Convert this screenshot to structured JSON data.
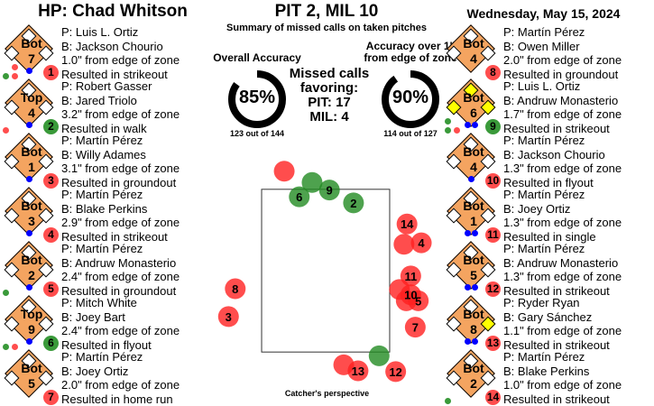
{
  "header": {
    "umpire": "HP: Chad Whitson",
    "score": "PIT 2, MIL 10",
    "subtitle": "Summary of missed calls on taken pitches",
    "date": "Wednesday, May 15, 2024"
  },
  "colors": {
    "red": "#ff4d4d",
    "green": "#3a9a3a",
    "base": "#f4a460",
    "occupied": "#ffff00",
    "out": "#0000ff"
  },
  "stats": {
    "overall": {
      "label": "Overall Accuracy",
      "pct_text": "85%",
      "pct": 0.85,
      "detail": "123 out of 144"
    },
    "over1": {
      "label1": "Accuracy over 1\"",
      "label2": "from edge of zone",
      "pct_text": "90%",
      "pct": 0.9,
      "detail": "114 out of 127"
    },
    "missed": {
      "l1": "Missed calls",
      "l2": "favoring:",
      "l3": "PIT: 17",
      "l4": "MIL: 4"
    }
  },
  "cards": [
    {
      "num": "1",
      "color": "red",
      "inning": [
        "Bot",
        "7"
      ],
      "bases": [
        0,
        0,
        0
      ],
      "outs": 1,
      "count": [
        [
          "",
          "red"
        ],
        [
          "green",
          "red"
        ]
      ],
      "lines": [
        "P: Luis L. Ortiz",
        "B: Jackson Chourio",
        "1.0\" from edge of zone",
        "Resulted in strikeout"
      ]
    },
    {
      "num": "2",
      "color": "green",
      "inning": [
        "Top",
        "4"
      ],
      "bases": [
        0,
        0,
        0
      ],
      "outs": 1,
      "count": [
        [],
        [
          "red"
        ]
      ],
      "lines": [
        "P: Robert Gasser",
        "B: Jared Triolo",
        "3.2\" from edge of zone",
        "Resulted in walk"
      ]
    },
    {
      "num": "3",
      "color": "red",
      "inning": [
        "Bot",
        "1"
      ],
      "bases": [
        0,
        0,
        0
      ],
      "outs": 1,
      "count": [
        [],
        []
      ],
      "lines": [
        "P: Martín Pérez",
        "B: Willy Adames",
        "3.1\" from edge of zone",
        "Resulted in groundout"
      ]
    },
    {
      "num": "4",
      "color": "red",
      "inning": [
        "Bot",
        "3"
      ],
      "bases": [
        0,
        0,
        0
      ],
      "outs": 1,
      "count": [
        [],
        []
      ],
      "lines": [
        "P: Martín Pérez",
        "B: Blake Perkins",
        "2.9\" from edge of zone",
        "Resulted in strikeout"
      ]
    },
    {
      "num": "5",
      "color": "red",
      "inning": [
        "Bot",
        "2"
      ],
      "bases": [
        0,
        0,
        0
      ],
      "outs": 1,
      "count": [
        [],
        [
          "green"
        ]
      ],
      "lines": [
        "P: Martín Pérez",
        "B: Andruw Monasterio",
        "2.4\" from edge of zone",
        "Resulted in groundout"
      ]
    },
    {
      "num": "6",
      "color": "green",
      "inning": [
        "Top",
        "9"
      ],
      "bases": [
        0,
        0,
        0
      ],
      "outs": 1,
      "count": [
        [],
        [
          "green",
          "red"
        ]
      ],
      "lines": [
        "P: Mitch White",
        "B: Joey Bart",
        "2.4\" from edge of zone",
        "Resulted in flyout"
      ]
    },
    {
      "num": "7",
      "color": "red",
      "inning": [
        "Bot",
        "5"
      ],
      "bases": [
        0,
        0,
        0
      ],
      "outs": 0,
      "count": [
        [],
        []
      ],
      "lines": [
        "P: Martín Pérez",
        "B: Joey Ortiz",
        "2.0\" from edge of zone",
        "Resulted in home run"
      ]
    },
    {
      "num": "8",
      "color": "red",
      "inning": [
        "Bot",
        "4"
      ],
      "bases": [
        0,
        0,
        0
      ],
      "outs": 0,
      "count": [
        [],
        []
      ],
      "lines": [
        "P: Martín Pérez",
        "B: Owen Miller",
        "2.0\" from edge of zone",
        "Resulted in groundout"
      ]
    },
    {
      "num": "9",
      "color": "green",
      "inning": [
        "Bot",
        "6"
      ],
      "bases": [
        1,
        1,
        1
      ],
      "outs": 2,
      "count": [
        [
          "green"
        ],
        [
          "green",
          "red"
        ]
      ],
      "lines": [
        "P: Luis L. Ortiz",
        "B: Andruw Monasterio",
        "1.7\" from edge of zone",
        "Resulted in strikeout"
      ]
    },
    {
      "num": "10",
      "color": "red",
      "inning": [
        "Bot",
        "4"
      ],
      "bases": [
        0,
        0,
        0
      ],
      "outs": 1,
      "count": [
        [],
        []
      ],
      "lines": [
        "P: Martín Pérez",
        "B: Jackson Chourio",
        "1.3\" from edge of zone",
        "Resulted in flyout"
      ]
    },
    {
      "num": "11",
      "color": "red",
      "inning": [
        "Bot",
        "1"
      ],
      "bases": [
        0,
        0,
        0
      ],
      "outs": 2,
      "count": [
        [],
        []
      ],
      "lines": [
        "P: Martín Pérez",
        "B: Joey Ortiz",
        "1.3\" from edge of zone",
        "Resulted in single"
      ]
    },
    {
      "num": "12",
      "color": "red",
      "inning": [
        "Bot",
        "5"
      ],
      "bases": [
        0,
        0,
        0
      ],
      "outs": 2,
      "count": [
        [],
        []
      ],
      "lines": [
        "P: Martín Pérez",
        "B: Andruw Monasterio",
        "1.3\" from edge of zone",
        "Resulted in strikeout"
      ]
    },
    {
      "num": "13",
      "color": "red",
      "inning": [
        "Bot",
        "8"
      ],
      "bases": [
        1,
        0,
        0
      ],
      "outs": 2,
      "count": [
        [],
        []
      ],
      "lines": [
        "P: Ryder Ryan",
        "B: Gary Sánchez",
        "1.1\" from edge of zone",
        "Resulted in strikeout"
      ]
    },
    {
      "num": "14",
      "color": "red",
      "inning": [
        "Bot",
        "2"
      ],
      "bases": [
        0,
        0,
        0
      ],
      "outs": 0,
      "count": [
        [],
        [
          "green"
        ]
      ],
      "lines": [
        "P: Martín Pérez",
        "B: Blake Perkins",
        "1.0\" from edge of zone",
        "Resulted in strikeout"
      ]
    }
  ],
  "plot": {
    "caption": "Catcher's perspective",
    "zone_half_width_in": 8.5,
    "zone_half_height_in": 10.8,
    "pitches": [
      {
        "label": "",
        "color": "red",
        "x_in": -5.5,
        "z_in": 13.2
      },
      {
        "label": "",
        "color": "green",
        "x_in": -1.8,
        "z_in": 11.7
      },
      {
        "label": "6",
        "color": "green",
        "x_in": -3.5,
        "z_in": 9.8
      },
      {
        "label": "9",
        "color": "green",
        "x_in": 0.5,
        "z_in": 10.7
      },
      {
        "label": "2",
        "color": "green",
        "x_in": 3.7,
        "z_in": 9.0
      },
      {
        "label": "14",
        "color": "red",
        "x_in": 10.8,
        "z_in": 6.2
      },
      {
        "label": "",
        "color": "red",
        "x_in": 10.4,
        "z_in": 3.5
      },
      {
        "label": "4",
        "color": "red",
        "x_in": 12.7,
        "z_in": 3.7
      },
      {
        "label": "11",
        "color": "red",
        "x_in": 11.3,
        "z_in": -0.7
      },
      {
        "label": "",
        "color": "red",
        "x_in": 9.8,
        "z_in": -2.5
      },
      {
        "label": "",
        "color": "red",
        "x_in": 10.7,
        "z_in": -4.0
      },
      {
        "label": "5",
        "color": "red",
        "x_in": 12.3,
        "z_in": -4.0
      },
      {
        "label": "10",
        "color": "red",
        "x_in": 11.3,
        "z_in": -3.2
      },
      {
        "label": "7",
        "color": "red",
        "x_in": 11.9,
        "z_in": -7.5
      },
      {
        "label": "8",
        "color": "red",
        "x_in": -12.0,
        "z_in": -2.4
      },
      {
        "label": "3",
        "color": "red",
        "x_in": -12.9,
        "z_in": -6.1
      },
      {
        "label": "",
        "color": "green",
        "x_in": 7.1,
        "z_in": -11.3
      },
      {
        "label": "",
        "color": "red",
        "x_in": 2.4,
        "z_in": -12.5
      },
      {
        "label": "13",
        "color": "red",
        "x_in": 4.3,
        "z_in": -13.3
      },
      {
        "label": "12",
        "color": "red",
        "x_in": 9.3,
        "z_in": -13.4
      }
    ]
  }
}
